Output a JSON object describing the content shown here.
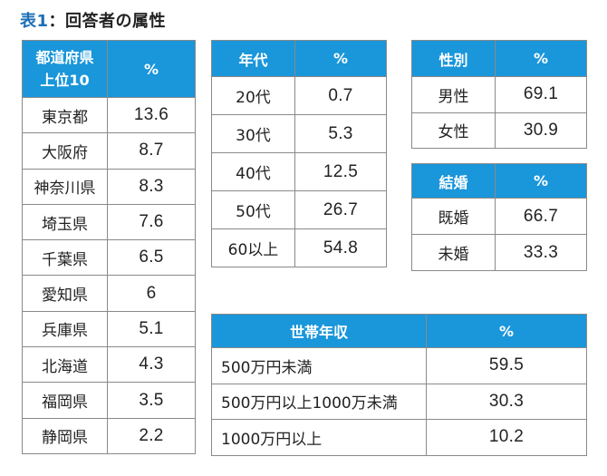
{
  "title": {
    "lead": "表1",
    "rest": "：回答者の属性"
  },
  "prefecture_table": {
    "header_name": "都道府県\n上位10",
    "header_pct": "%",
    "rows": [
      {
        "name": "東京都",
        "pct": "13.6"
      },
      {
        "name": "大阪府",
        "pct": "8.7"
      },
      {
        "name": "神奈川県",
        "pct": "8.3"
      },
      {
        "name": "埼玉県",
        "pct": "7.6"
      },
      {
        "name": "千葉県",
        "pct": "6.5"
      },
      {
        "name": "愛知県",
        "pct": "6"
      },
      {
        "name": "兵庫県",
        "pct": "5.1"
      },
      {
        "name": "北海道",
        "pct": "4.3"
      },
      {
        "name": "福岡県",
        "pct": "3.5"
      },
      {
        "name": "静岡県",
        "pct": "2.2"
      }
    ]
  },
  "age_table": {
    "header_name": "年代",
    "header_pct": "%",
    "rows": [
      {
        "name": "20代",
        "pct": "0.7"
      },
      {
        "name": "30代",
        "pct": "5.3"
      },
      {
        "name": "40代",
        "pct": "12.5"
      },
      {
        "name": "50代",
        "pct": "26.7"
      },
      {
        "name": "60以上",
        "pct": "54.8"
      }
    ]
  },
  "gender_table": {
    "header_name": "性別",
    "header_pct": "%",
    "rows": [
      {
        "name": "男性",
        "pct": "69.1"
      },
      {
        "name": "女性",
        "pct": "30.9"
      }
    ]
  },
  "marriage_table": {
    "header_name": "結婚",
    "header_pct": "%",
    "rows": [
      {
        "name": "既婚",
        "pct": "66.7"
      },
      {
        "name": "未婚",
        "pct": "33.3"
      }
    ]
  },
  "income_table": {
    "header_name": "世帯年収",
    "header_pct": "%",
    "rows": [
      {
        "name": "500万円未満",
        "pct": "59.5"
      },
      {
        "name": "500万円以上1000万未満",
        "pct": "30.3"
      },
      {
        "name": "1000万円以上",
        "pct": "10.2"
      }
    ]
  },
  "colors": {
    "header_bg": "#1a96da",
    "title_accent": "#1b6fb6",
    "border": "#8a8a8a"
  }
}
